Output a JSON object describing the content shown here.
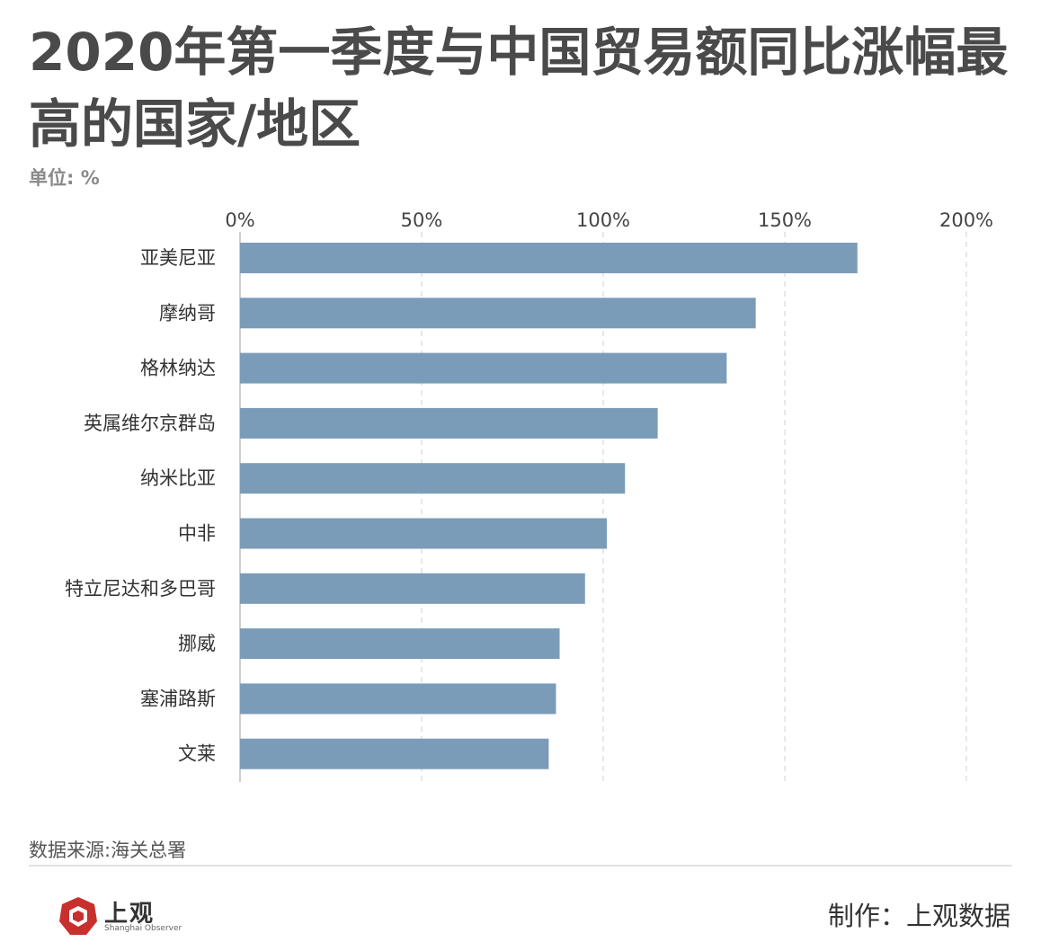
{
  "header": {
    "title": "2020年第一季度与中国贸易额同比涨幅最高的国家/地区",
    "unit": "单位: %"
  },
  "footer": {
    "source": "数据来源:海关总署",
    "credit": "制作：上观数据",
    "brand_name": "上观",
    "brand_en": "Shanghai Observer",
    "brand_icon": "shanghai-observer-logo-icon"
  },
  "colors": {
    "bar": "#7b9cb8",
    "grid": "#d9d9d9",
    "brand_red": "#c8302d"
  },
  "chart_data": {
    "type": "bar",
    "orientation": "horizontal",
    "title": "2020年第一季度与中国贸易额同比涨幅最高的国家/地区",
    "xlabel": "",
    "ylabel": "",
    "unit": "单位: %",
    "xlim": [
      0,
      200
    ],
    "x_ticks": [
      0,
      50,
      100,
      150,
      200
    ],
    "x_tick_labels": [
      "0%",
      "50%",
      "100%",
      "150%",
      "200%"
    ],
    "axis_position": "top",
    "grid": true,
    "categories": [
      "亚美尼亚",
      "摩纳哥",
      "格林纳达",
      "英属维尔京群岛",
      "纳米比亚",
      "中非",
      "特立尼达和多巴哥",
      "挪威",
      "塞浦路斯",
      "文莱"
    ],
    "values": [
      170,
      142,
      134,
      115,
      106,
      101,
      95,
      88,
      87,
      85
    ]
  }
}
